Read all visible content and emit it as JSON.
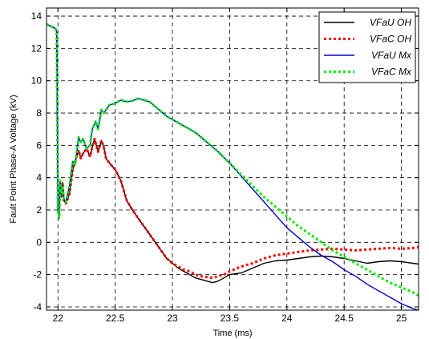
{
  "chart_data": {
    "type": "line",
    "title": "",
    "xlabel": "Time (ms)",
    "ylabel": "Fault Point Phase-A Voltage (kV)",
    "xlim": [
      21.9,
      25.15
    ],
    "ylim": [
      -4.2,
      14.5
    ],
    "xticks": [
      22,
      22.5,
      23,
      23.5,
      24,
      24.5,
      25
    ],
    "xtick_labels": [
      "22",
      "22.5",
      "23",
      "23.5",
      "24",
      "24.5",
      "25"
    ],
    "yticks": [
      -4,
      -2,
      0,
      2,
      4,
      6,
      8,
      10,
      12,
      14
    ],
    "ytick_labels": [
      "-4",
      "-2",
      "0",
      "2",
      "4",
      "6",
      "8",
      "10",
      "12",
      "14"
    ],
    "grid": true,
    "legend_position": "top-right",
    "series": [
      {
        "name": "VFaU OH",
        "color": "#000000",
        "dash": "solid",
        "x": [
          21.9,
          21.96,
          21.98,
          21.99,
          22.0,
          22.01,
          22.02,
          22.03,
          22.04,
          22.05,
          22.07,
          22.1,
          22.13,
          22.15,
          22.18,
          22.2,
          22.22,
          22.25,
          22.28,
          22.3,
          22.32,
          22.35,
          22.38,
          22.4,
          22.42,
          22.45,
          22.5,
          22.55,
          22.6,
          22.65,
          22.7,
          22.75,
          22.8,
          22.85,
          22.9,
          22.95,
          23.0,
          23.05,
          23.1,
          23.15,
          23.2,
          23.25,
          23.3,
          23.35,
          23.4,
          23.45,
          23.5,
          23.6,
          23.7,
          23.8,
          23.9,
          24.0,
          24.1,
          24.2,
          24.3,
          24.4,
          24.5,
          24.6,
          24.7,
          24.8,
          24.9,
          25.0,
          25.1,
          25.15
        ],
        "y": [
          13.5,
          13.3,
          13.2,
          13.0,
          2.0,
          1.5,
          3.5,
          2.8,
          3.7,
          2.6,
          2.4,
          3.0,
          4.5,
          5.0,
          5.7,
          5.2,
          5.5,
          5.8,
          5.3,
          5.9,
          6.4,
          5.6,
          6.3,
          5.9,
          5.2,
          4.9,
          4.5,
          3.8,
          2.6,
          2.0,
          1.5,
          1.0,
          0.5,
          0.0,
          -0.5,
          -1.0,
          -1.3,
          -1.6,
          -1.8,
          -2.0,
          -2.2,
          -2.3,
          -2.4,
          -2.5,
          -2.4,
          -2.2,
          -2.0,
          -1.9,
          -1.6,
          -1.3,
          -1.15,
          -1.1,
          -1.0,
          -0.9,
          -0.85,
          -0.9,
          -1.0,
          -1.15,
          -1.3,
          -1.2,
          -1.15,
          -1.2,
          -1.3,
          -1.35
        ]
      },
      {
        "name": "VFaC OH",
        "color": "#ff0000",
        "dash": "dotted",
        "x": [
          21.9,
          21.96,
          21.98,
          21.99,
          22.0,
          22.01,
          22.02,
          22.03,
          22.04,
          22.05,
          22.07,
          22.1,
          22.13,
          22.15,
          22.18,
          22.2,
          22.22,
          22.25,
          22.28,
          22.3,
          22.32,
          22.35,
          22.38,
          22.4,
          22.42,
          22.45,
          22.5,
          22.55,
          22.6,
          22.65,
          22.7,
          22.75,
          22.8,
          22.85,
          22.9,
          22.95,
          23.0,
          23.05,
          23.1,
          23.15,
          23.2,
          23.25,
          23.3,
          23.35,
          23.4,
          23.45,
          23.5,
          23.6,
          23.7,
          23.8,
          23.9,
          24.0,
          24.1,
          24.2,
          24.3,
          24.4,
          24.5,
          24.6,
          24.7,
          24.8,
          24.9,
          25.0,
          25.1,
          25.15
        ],
        "y": [
          13.5,
          13.3,
          13.2,
          13.0,
          2.0,
          1.5,
          3.5,
          2.8,
          3.7,
          2.6,
          2.4,
          3.0,
          4.5,
          5.0,
          5.7,
          5.2,
          5.5,
          5.8,
          5.3,
          5.9,
          6.4,
          5.6,
          6.3,
          5.9,
          5.2,
          4.9,
          4.5,
          3.8,
          2.6,
          2.0,
          1.5,
          1.0,
          0.5,
          0.0,
          -0.5,
          -1.0,
          -1.3,
          -1.5,
          -1.7,
          -1.8,
          -2.0,
          -2.1,
          -2.15,
          -2.2,
          -2.1,
          -2.0,
          -1.8,
          -1.5,
          -1.3,
          -1.0,
          -0.8,
          -0.7,
          -0.6,
          -0.5,
          -0.45,
          -0.4,
          -0.45,
          -0.5,
          -0.45,
          -0.4,
          -0.35,
          -0.4,
          -0.35,
          -0.3
        ]
      },
      {
        "name": "VFaU Mx",
        "color": "#0000cc",
        "dash": "solid",
        "x": [
          21.9,
          21.96,
          21.98,
          21.99,
          22.0,
          22.01,
          22.02,
          22.03,
          22.04,
          22.05,
          22.07,
          22.1,
          22.13,
          22.15,
          22.18,
          22.2,
          22.22,
          22.25,
          22.28,
          22.3,
          22.33,
          22.35,
          22.38,
          22.4,
          22.45,
          22.5,
          22.55,
          22.6,
          22.65,
          22.7,
          22.75,
          22.8,
          22.85,
          22.9,
          22.95,
          23.0,
          23.1,
          23.2,
          23.3,
          23.4,
          23.5,
          23.6,
          23.7,
          23.8,
          23.9,
          24.0,
          24.1,
          24.2,
          24.3,
          24.4,
          24.5,
          24.6,
          24.7,
          24.8,
          24.9,
          25.0,
          25.1,
          25.15
        ],
        "y": [
          13.5,
          13.3,
          13.2,
          13.0,
          2.0,
          1.5,
          3.8,
          3.0,
          3.5,
          2.7,
          2.5,
          3.5,
          5.0,
          4.8,
          6.5,
          6.2,
          6.4,
          5.8,
          6.0,
          7.0,
          7.5,
          7.0,
          8.2,
          8.0,
          8.5,
          8.6,
          8.8,
          8.7,
          8.75,
          8.9,
          8.8,
          8.7,
          8.4,
          8.1,
          7.8,
          7.6,
          7.2,
          6.8,
          6.2,
          5.6,
          4.9,
          4.1,
          3.3,
          2.5,
          1.7,
          0.9,
          0.3,
          -0.3,
          -0.8,
          -1.2,
          -1.7,
          -2.1,
          -2.6,
          -3.0,
          -3.4,
          -3.8,
          -4.1,
          -4.2
        ]
      },
      {
        "name": "VFaC Mx",
        "color": "#00ee00",
        "dash": "dotted",
        "x": [
          21.9,
          21.96,
          21.98,
          21.99,
          22.0,
          22.01,
          22.02,
          22.03,
          22.04,
          22.05,
          22.07,
          22.1,
          22.13,
          22.15,
          22.18,
          22.2,
          22.22,
          22.25,
          22.28,
          22.3,
          22.33,
          22.35,
          22.38,
          22.4,
          22.45,
          22.5,
          22.55,
          22.6,
          22.65,
          22.7,
          22.75,
          22.8,
          22.85,
          22.9,
          22.95,
          23.0,
          23.1,
          23.2,
          23.3,
          23.4,
          23.5,
          23.6,
          23.7,
          23.8,
          23.9,
          24.0,
          24.1,
          24.2,
          24.3,
          24.4,
          24.5,
          24.6,
          24.7,
          24.8,
          24.9,
          25.0,
          25.1,
          25.15
        ],
        "y": [
          13.5,
          13.3,
          13.2,
          13.0,
          2.0,
          1.5,
          3.8,
          3.0,
          3.5,
          2.7,
          2.5,
          3.5,
          5.0,
          4.8,
          6.5,
          6.2,
          6.4,
          5.8,
          6.0,
          7.0,
          7.5,
          7.0,
          8.2,
          8.0,
          8.5,
          8.6,
          8.8,
          8.7,
          8.75,
          8.9,
          8.8,
          8.7,
          8.4,
          8.1,
          7.8,
          7.6,
          7.2,
          6.8,
          6.2,
          5.6,
          4.9,
          4.2,
          3.5,
          2.8,
          2.2,
          1.6,
          1.0,
          0.5,
          0.0,
          -0.5,
          -0.9,
          -1.3,
          -1.7,
          -2.1,
          -2.5,
          -2.8,
          -3.1,
          -3.3
        ]
      }
    ]
  }
}
